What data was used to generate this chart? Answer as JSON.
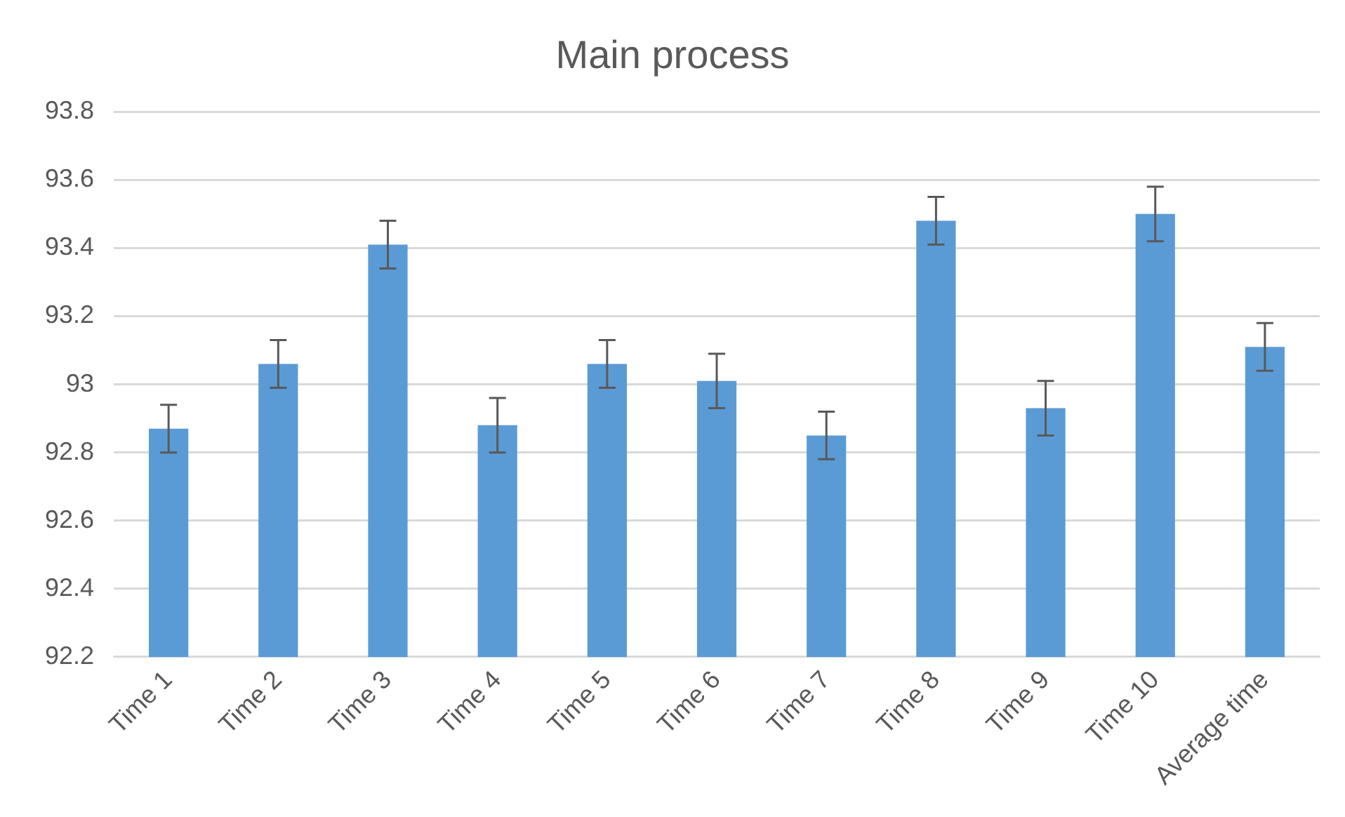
{
  "chart_data": {
    "type": "bar",
    "title": "Main process",
    "categories": [
      "Time 1",
      "Time 2",
      "Time 3",
      "Time 4",
      "Time 5",
      "Time 6",
      "Time 7",
      "Time 8",
      "Time 9",
      "Time 10",
      "Average time"
    ],
    "values": [
      92.87,
      93.06,
      93.41,
      92.88,
      93.06,
      93.01,
      92.85,
      93.48,
      92.93,
      93.5,
      93.11
    ],
    "errors": [
      0.07,
      0.07,
      0.07,
      0.08,
      0.07,
      0.08,
      0.07,
      0.07,
      0.08,
      0.08,
      0.07
    ],
    "color": "#5b9bd5",
    "ylim": [
      92.2,
      93.8
    ],
    "yticks": [
      92.2,
      92.4,
      92.6,
      92.8,
      93,
      93.2,
      93.4,
      93.6,
      93.8
    ],
    "grid": "y",
    "legend": false
  }
}
